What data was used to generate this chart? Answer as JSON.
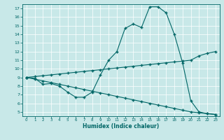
{
  "xlabel": "Humidex (Indice chaleur)",
  "bg_color": "#c8e8e8",
  "line_color": "#006666",
  "xlim": [
    -0.5,
    23.5
  ],
  "ylim": [
    4.5,
    17.5
  ],
  "yticks": [
    5,
    6,
    7,
    8,
    9,
    10,
    11,
    12,
    13,
    14,
    15,
    16,
    17
  ],
  "xticks": [
    0,
    1,
    2,
    3,
    4,
    5,
    6,
    7,
    8,
    9,
    10,
    11,
    12,
    13,
    14,
    15,
    16,
    17,
    18,
    19,
    20,
    21,
    22,
    23
  ],
  "line1_x": [
    0,
    1,
    2,
    3,
    4,
    5,
    6,
    7,
    8,
    9,
    10,
    11,
    12,
    13,
    14,
    15,
    16,
    17,
    18,
    19,
    20,
    21,
    22,
    23
  ],
  "line1_y": [
    9.0,
    8.9,
    8.2,
    8.3,
    8.0,
    7.3,
    6.7,
    6.7,
    7.3,
    9.3,
    11.0,
    12.0,
    14.7,
    15.2,
    14.8,
    17.2,
    17.2,
    16.5,
    14.0,
    10.7,
    6.3,
    5.0,
    4.8,
    4.7
  ],
  "line2_x": [
    0,
    1,
    2,
    3,
    4,
    5,
    6,
    7,
    8,
    9,
    10,
    11,
    12,
    13,
    14,
    15,
    16,
    17,
    18,
    19,
    20,
    21,
    22,
    23
  ],
  "line2_y": [
    9.0,
    9.1,
    9.2,
    9.3,
    9.4,
    9.5,
    9.6,
    9.7,
    9.8,
    9.9,
    10.0,
    10.1,
    10.2,
    10.3,
    10.4,
    10.5,
    10.6,
    10.7,
    10.8,
    10.9,
    11.0,
    11.5,
    11.8,
    12.0
  ],
  "line3_x": [
    0,
    1,
    2,
    3,
    4,
    5,
    6,
    7,
    8,
    9,
    10,
    11,
    12,
    13,
    14,
    15,
    16,
    17,
    18,
    19,
    20,
    21,
    22,
    23
  ],
  "line3_y": [
    9.0,
    8.8,
    8.6,
    8.4,
    8.2,
    8.0,
    7.8,
    7.6,
    7.4,
    7.2,
    7.0,
    6.8,
    6.6,
    6.4,
    6.2,
    6.0,
    5.8,
    5.6,
    5.4,
    5.2,
    5.0,
    4.9,
    4.8,
    4.7
  ]
}
